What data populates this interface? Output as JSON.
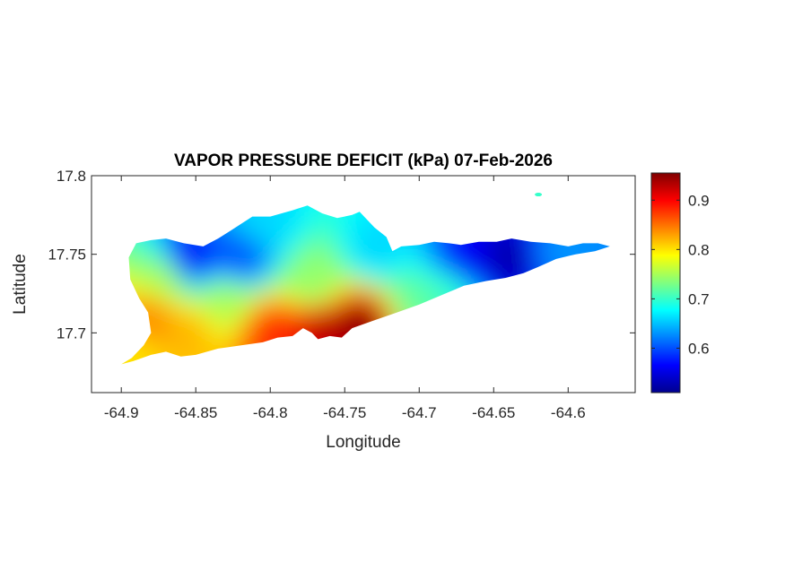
{
  "chart_data": {
    "type": "heatmap",
    "title": "VAPOR PRESSURE DEFICIT (kPa) 07-Feb-2026",
    "xlabel": "Longitude",
    "ylabel": "Latitude",
    "xlim": [
      -64.92,
      -64.555
    ],
    "ylim": [
      17.662,
      17.8
    ],
    "xticks": [
      -64.9,
      -64.85,
      -64.8,
      -64.75,
      -64.7,
      -64.65,
      -64.6
    ],
    "xtick_labels": [
      "-64.9",
      "-64.85",
      "-64.8",
      "-64.75",
      "-64.7",
      "-64.65",
      "-64.6"
    ],
    "yticks": [
      17.7,
      17.75,
      17.8
    ],
    "ytick_labels": [
      "17.7",
      "17.75",
      "17.8"
    ],
    "colorbar": {
      "colormap": "jet",
      "range": [
        0.51,
        0.955
      ],
      "ticks": [
        0.6,
        0.7,
        0.8,
        0.9
      ],
      "tick_labels": [
        "0.6",
        "0.7",
        "0.8",
        "0.9"
      ]
    },
    "grid": false,
    "field_features": [
      {
        "lon": -64.855,
        "lat": 17.746,
        "value": 0.56
      },
      {
        "lon": -64.82,
        "lat": 17.747,
        "value": 0.6
      },
      {
        "lon": -64.805,
        "lat": 17.77,
        "value": 0.66
      },
      {
        "lon": -64.73,
        "lat": 17.752,
        "value": 0.66
      },
      {
        "lon": -64.67,
        "lat": 17.744,
        "value": 0.56
      },
      {
        "lon": -64.64,
        "lat": 17.747,
        "value": 0.53
      },
      {
        "lon": -64.605,
        "lat": 17.752,
        "value": 0.63
      },
      {
        "lon": -64.74,
        "lat": 17.705,
        "value": 0.95
      },
      {
        "lon": -64.765,
        "lat": 17.704,
        "value": 0.93
      },
      {
        "lon": -64.8,
        "lat": 17.701,
        "value": 0.88
      },
      {
        "lon": -64.855,
        "lat": 17.7,
        "value": 0.82
      },
      {
        "lon": -64.88,
        "lat": 17.71,
        "value": 0.84
      },
      {
        "lon": -64.87,
        "lat": 17.735,
        "value": 0.75
      },
      {
        "lon": -64.83,
        "lat": 17.72,
        "value": 0.75
      },
      {
        "lon": -64.77,
        "lat": 17.73,
        "value": 0.74
      },
      {
        "lon": -64.7,
        "lat": 17.72,
        "value": 0.72
      },
      {
        "lon": -64.68,
        "lat": 17.728,
        "value": 0.7
      },
      {
        "lon": -64.895,
        "lat": 17.684,
        "value": 0.8
      }
    ],
    "island_outline": [
      [
        -64.9,
        17.68
      ],
      [
        -64.893,
        17.684
      ],
      [
        -64.885,
        17.692
      ],
      [
        -64.88,
        17.7
      ],
      [
        -64.882,
        17.713
      ],
      [
        -64.888,
        17.722
      ],
      [
        -64.894,
        17.734
      ],
      [
        -64.895,
        17.748
      ],
      [
        -64.89,
        17.757
      ],
      [
        -64.88,
        17.759
      ],
      [
        -64.87,
        17.76
      ],
      [
        -64.858,
        17.757
      ],
      [
        -64.845,
        17.755
      ],
      [
        -64.835,
        17.76
      ],
      [
        -64.825,
        17.766
      ],
      [
        -64.812,
        17.774
      ],
      [
        -64.8,
        17.774
      ],
      [
        -64.785,
        17.778
      ],
      [
        -64.775,
        17.781
      ],
      [
        -64.765,
        17.776
      ],
      [
        -64.755,
        17.773
      ],
      [
        -64.745,
        17.775
      ],
      [
        -64.74,
        17.777
      ],
      [
        -64.735,
        17.772
      ],
      [
        -64.73,
        17.767
      ],
      [
        -64.722,
        17.761
      ],
      [
        -64.718,
        17.752
      ],
      [
        -64.712,
        17.755
      ],
      [
        -64.7,
        17.756
      ],
      [
        -64.69,
        17.758
      ],
      [
        -64.68,
        17.757
      ],
      [
        -64.672,
        17.756
      ],
      [
        -64.66,
        17.758
      ],
      [
        -64.648,
        17.758
      ],
      [
        -64.638,
        17.76
      ],
      [
        -64.625,
        17.758
      ],
      [
        -64.612,
        17.757
      ],
      [
        -64.6,
        17.755
      ],
      [
        -64.59,
        17.757
      ],
      [
        -64.58,
        17.757
      ],
      [
        -64.572,
        17.755
      ],
      [
        -64.582,
        17.752
      ],
      [
        -64.595,
        17.75
      ],
      [
        -64.608,
        17.747
      ],
      [
        -64.62,
        17.742
      ],
      [
        -64.63,
        17.738
      ],
      [
        -64.642,
        17.735
      ],
      [
        -64.655,
        17.733
      ],
      [
        -64.67,
        17.73
      ],
      [
        -64.68,
        17.726
      ],
      [
        -64.69,
        17.722
      ],
      [
        -64.7,
        17.718
      ],
      [
        -64.715,
        17.713
      ],
      [
        -64.73,
        17.708
      ],
      [
        -64.745,
        17.703
      ],
      [
        -64.752,
        17.697
      ],
      [
        -64.76,
        17.698
      ],
      [
        -64.768,
        17.696
      ],
      [
        -64.772,
        17.7
      ],
      [
        -64.778,
        17.703
      ],
      [
        -64.785,
        17.698
      ],
      [
        -64.795,
        17.697
      ],
      [
        -64.805,
        17.694
      ],
      [
        -64.82,
        17.692
      ],
      [
        -64.835,
        17.69
      ],
      [
        -64.85,
        17.686
      ],
      [
        -64.86,
        17.685
      ],
      [
        -64.87,
        17.688
      ],
      [
        -64.88,
        17.686
      ],
      [
        -64.892,
        17.682
      ]
    ],
    "islets": [
      {
        "lon": -64.62,
        "lat": 17.788,
        "value": 0.7
      }
    ]
  }
}
